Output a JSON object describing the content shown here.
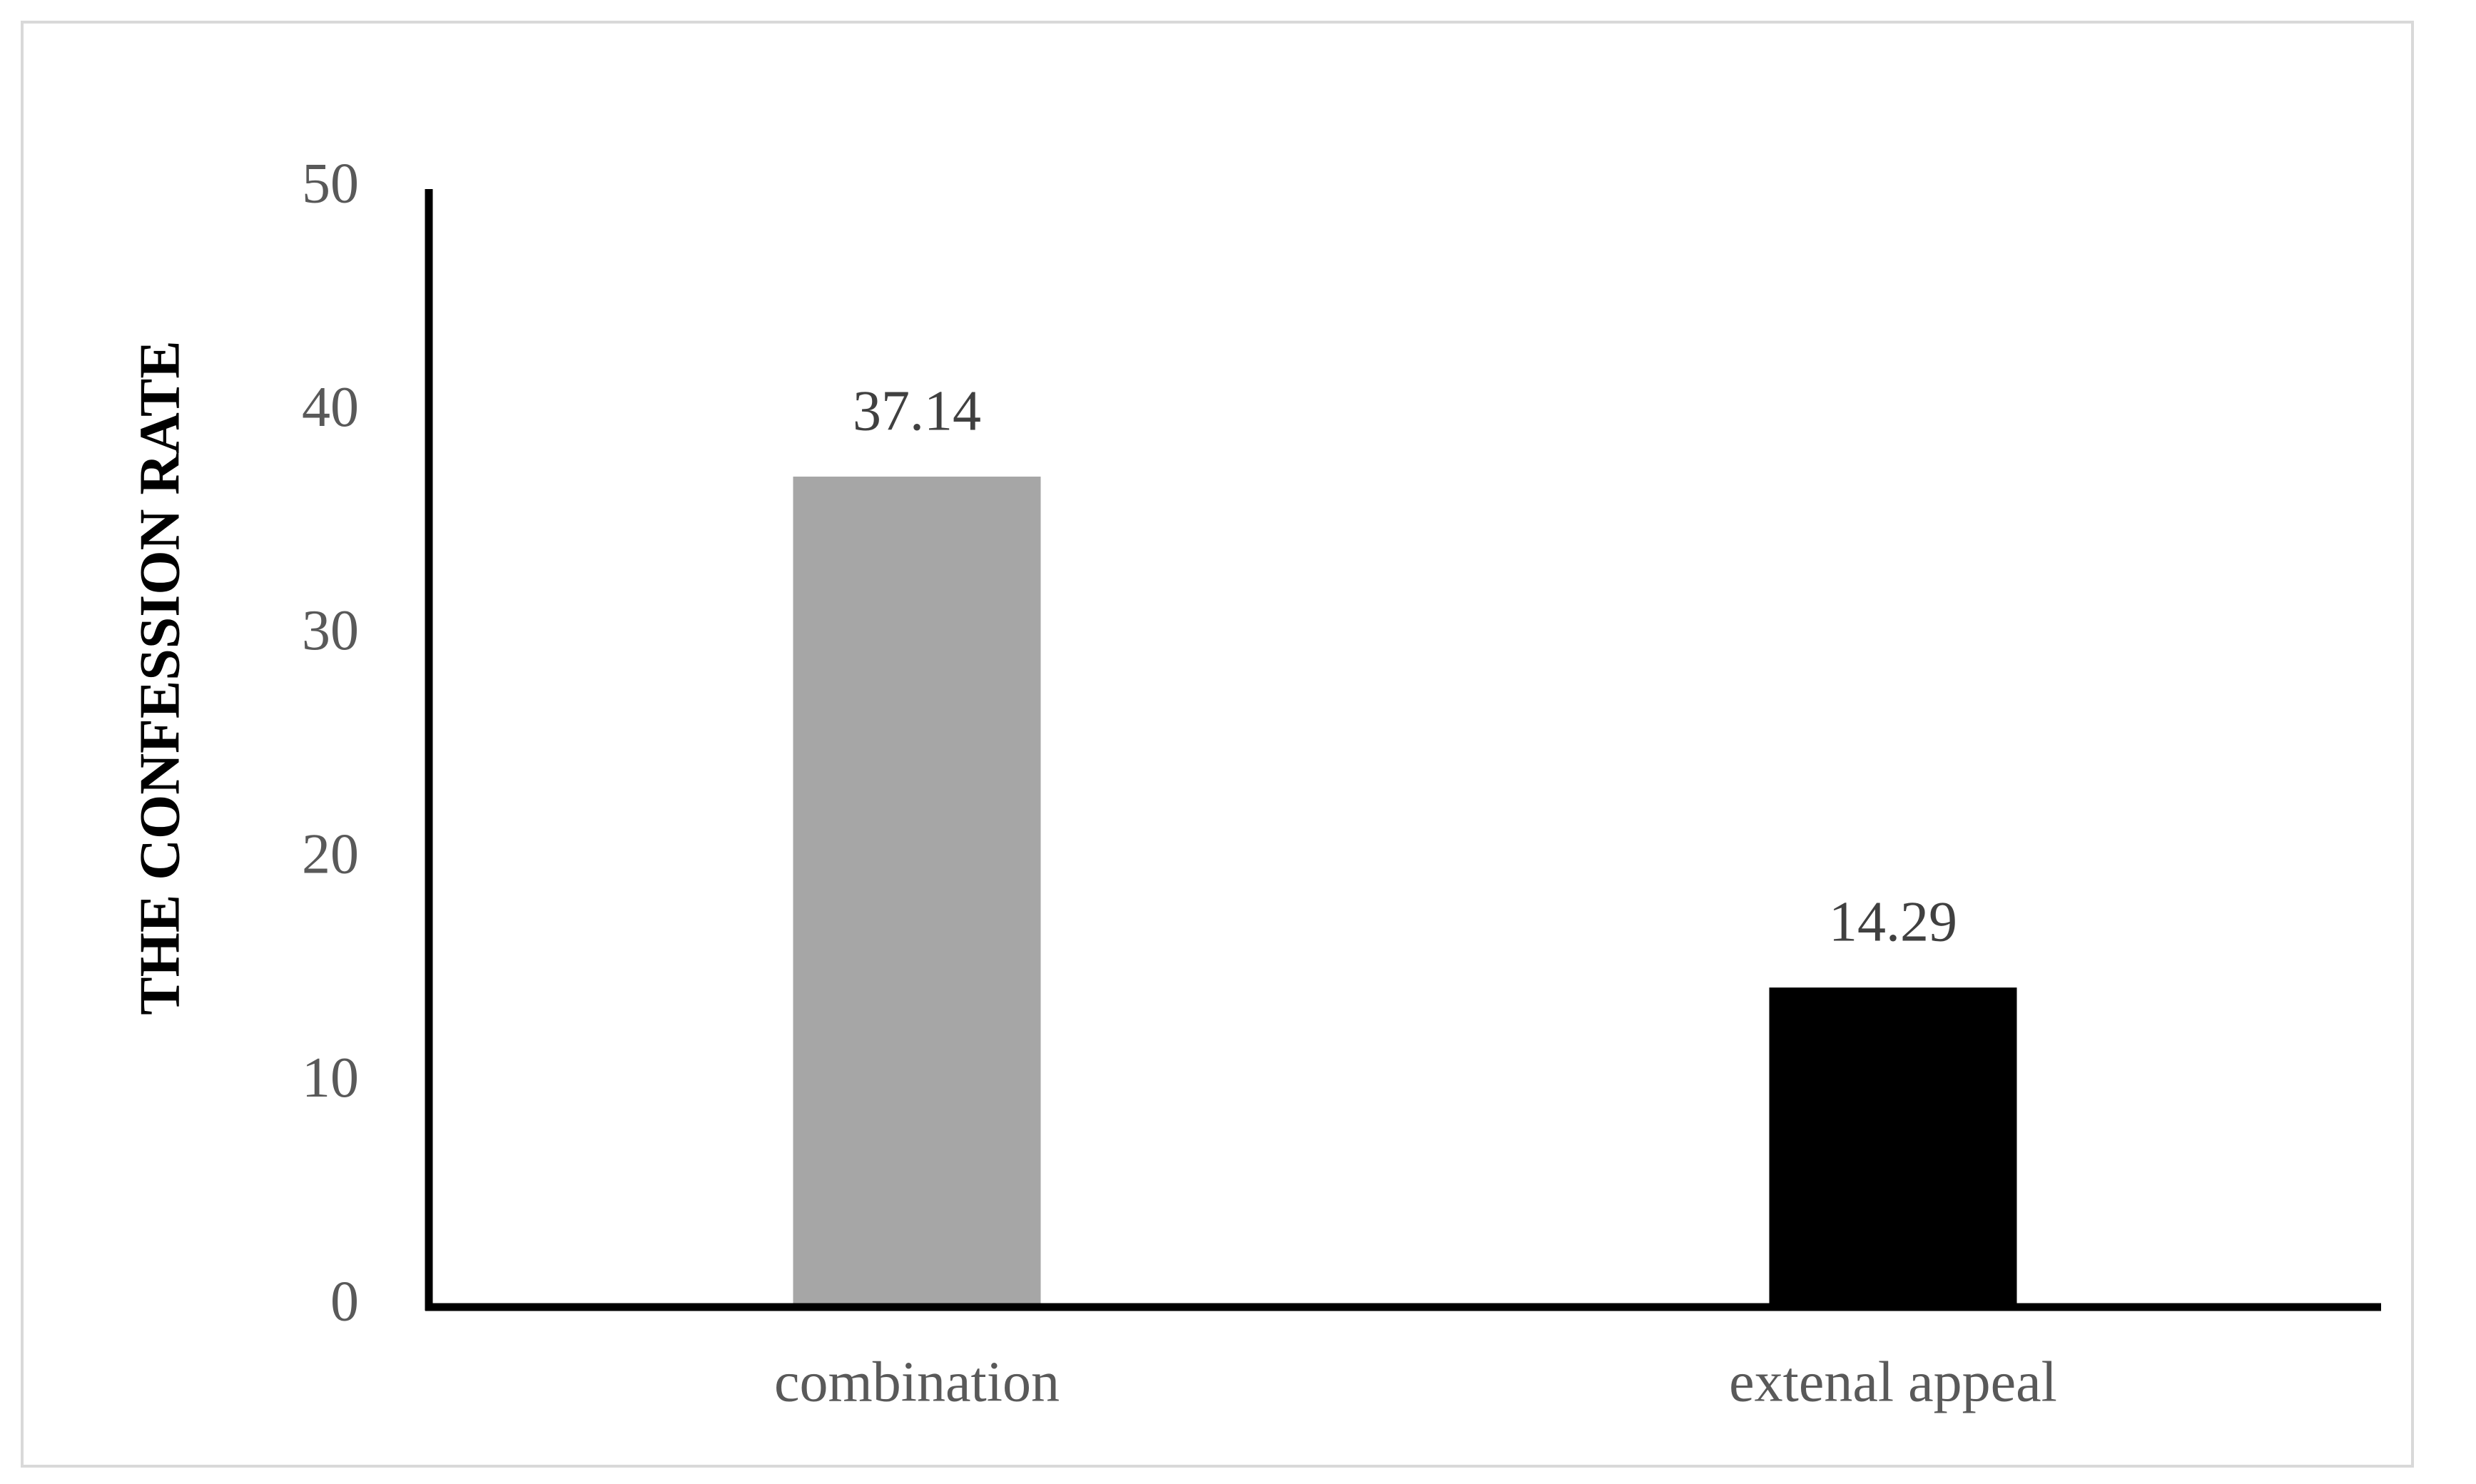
{
  "chart_data": {
    "type": "bar",
    "y_label": "THE CONFESSION RATE",
    "categories": [
      "combination",
      "extenal appeal"
    ],
    "values": [
      37.14,
      14.29
    ],
    "colors": [
      "#a6a6a6",
      "#000000"
    ],
    "ylim": [
      0,
      50
    ],
    "yticks": [
      0,
      10,
      20,
      30,
      40,
      50
    ],
    "grid": false
  }
}
